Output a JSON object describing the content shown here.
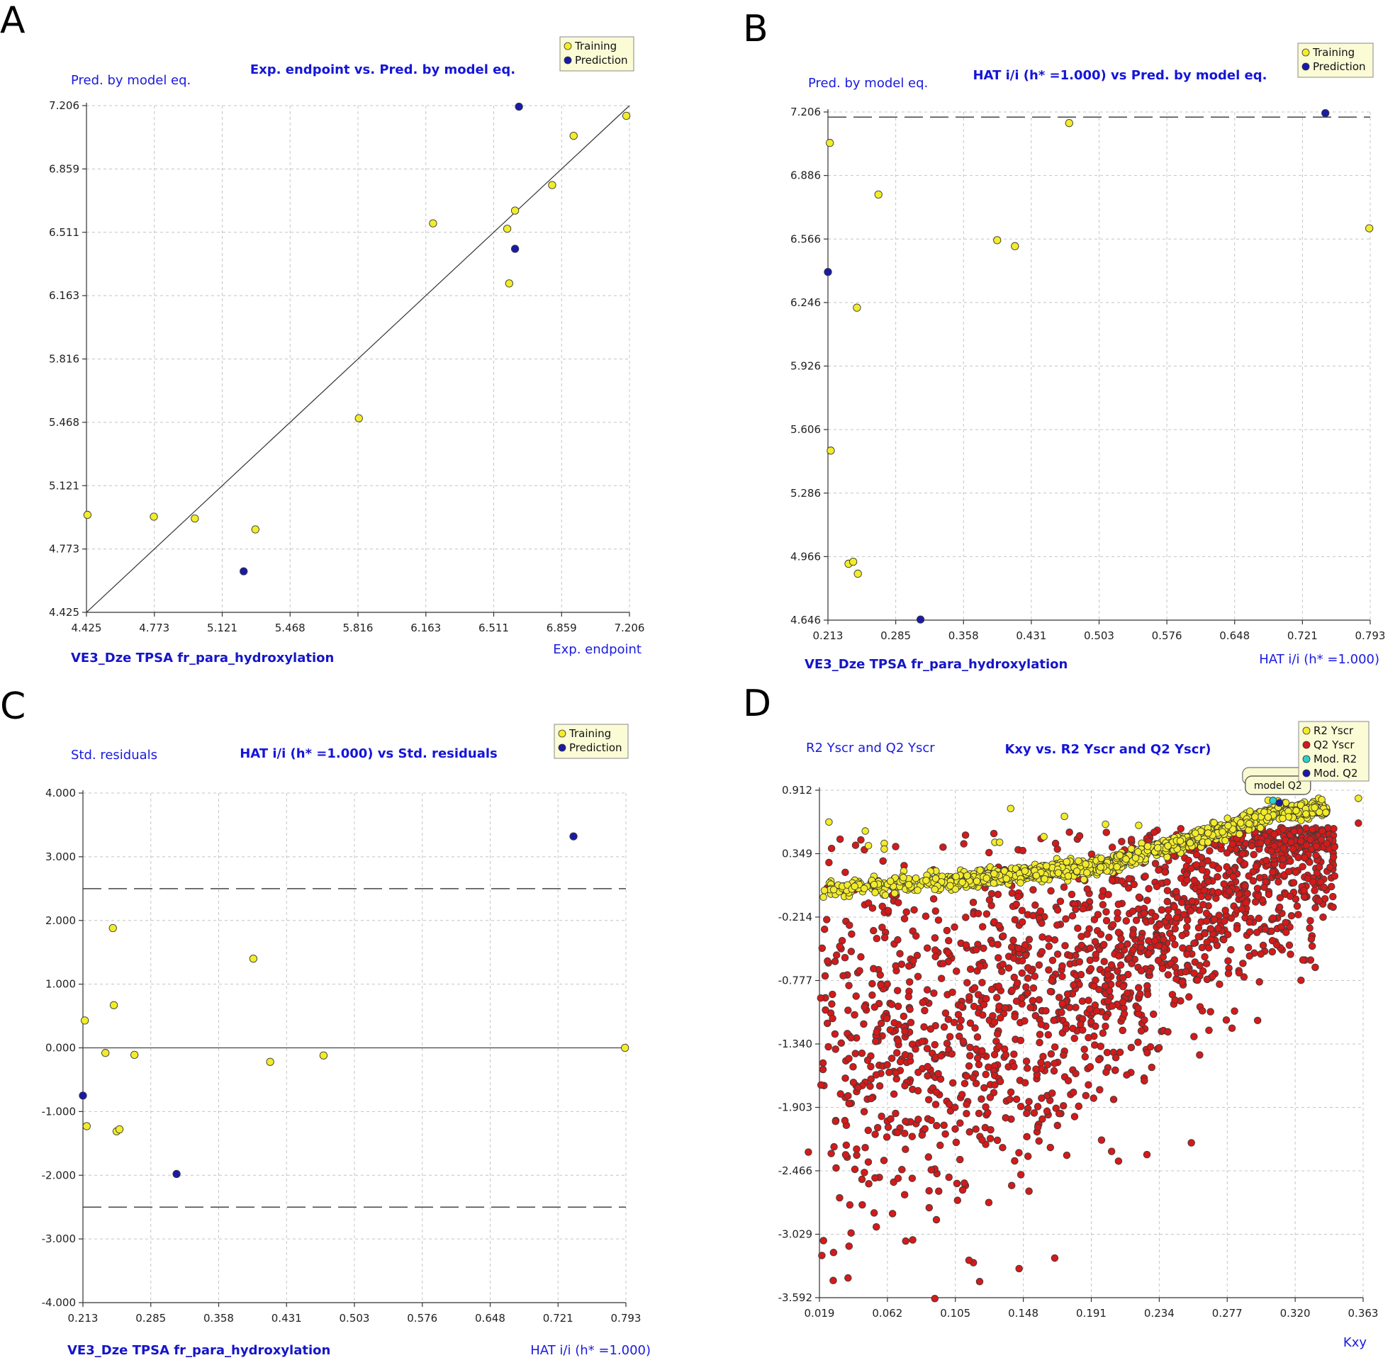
{
  "panels": [
    {
      "letter": "A",
      "footer": "VE3_Dze TPSA fr_para_hydroxylation"
    },
    {
      "letter": "B",
      "footer": "VE3_Dze TPSA fr_para_hydroxylation"
    },
    {
      "letter": "C",
      "footer": "VE3_Dze TPSA fr_para_hydroxylation"
    },
    {
      "letter": "D",
      "footer": ""
    }
  ],
  "chart_data": [
    {
      "type": "scatter",
      "title": "Exp. endpoint vs. Pred. by model eq.",
      "xlabel": "Exp. endpoint",
      "ylabel": "Pred. by model eq.",
      "xlim": [
        4.425,
        7.206
      ],
      "ylim": [
        4.425,
        7.206
      ],
      "xticks": [
        "4.425",
        "4.773",
        "5.121",
        "5.468",
        "5.816",
        "6.163",
        "6.511",
        "6.859",
        "7.206"
      ],
      "yticks": [
        "4.425",
        "4.773",
        "5.121",
        "5.468",
        "5.816",
        "6.163",
        "6.511",
        "6.859",
        "7.206"
      ],
      "grid": true,
      "legend_position": "top-right",
      "reference_line": "y = x",
      "series": [
        {
          "name": "Training",
          "color": "#f2ec2a",
          "points": [
            [
              4.43,
              4.96
            ],
            [
              4.77,
              4.95
            ],
            [
              4.98,
              4.94
            ],
            [
              5.29,
              4.88
            ],
            [
              5.82,
              5.49
            ],
            [
              6.2,
              6.56
            ],
            [
              6.58,
              6.53
            ],
            [
              6.59,
              6.23
            ],
            [
              6.62,
              6.63
            ],
            [
              6.81,
              6.77
            ],
            [
              6.92,
              7.04
            ],
            [
              7.19,
              7.15
            ]
          ]
        },
        {
          "name": "Prediction",
          "color": "#1a1aa8",
          "points": [
            [
              5.23,
              4.65
            ],
            [
              6.62,
              6.42
            ],
            [
              6.64,
              7.2
            ]
          ]
        }
      ]
    },
    {
      "type": "scatter",
      "title": "HAT i/i (h* =1.000) vs Pred. by model eq.",
      "xlabel": "HAT i/i (h* =1.000)",
      "ylabel": "Pred. by model eq.",
      "xlim": [
        0.213,
        0.793
      ],
      "ylim": [
        4.646,
        7.206
      ],
      "xticks": [
        "0.213",
        "0.285",
        "0.358",
        "0.431",
        "0.503",
        "0.576",
        "0.648",
        "0.721",
        "0.793"
      ],
      "yticks": [
        "4.646",
        "4.966",
        "5.286",
        "5.606",
        "5.926",
        "6.246",
        "6.566",
        "6.886",
        "7.206"
      ],
      "grid": true,
      "legend_position": "top-right",
      "threshold_line_y": 7.18,
      "series": [
        {
          "name": "Training",
          "color": "#f2ec2a",
          "points": [
            [
              0.215,
              7.05
            ],
            [
              0.216,
              5.5
            ],
            [
              0.235,
              4.93
            ],
            [
              0.24,
              4.94
            ],
            [
              0.245,
              4.88
            ],
            [
              0.244,
              6.22
            ],
            [
              0.267,
              6.79
            ],
            [
              0.394,
              6.56
            ],
            [
              0.413,
              6.53
            ],
            [
              0.471,
              7.15
            ],
            [
              0.792,
              6.62
            ]
          ]
        },
        {
          "name": "Prediction",
          "color": "#1a1aa8",
          "points": [
            [
              0.213,
              6.4
            ],
            [
              0.312,
              4.649
            ],
            [
              0.745,
              7.2
            ]
          ]
        }
      ]
    },
    {
      "type": "scatter",
      "title": "HAT i/i (h* =1.000) vs Std. residuals",
      "xlabel": "HAT i/i (h* =1.000)",
      "ylabel": "Std. residuals",
      "xlim": [
        0.213,
        0.793
      ],
      "ylim": [
        -4.0,
        4.0
      ],
      "xticks": [
        "0.213",
        "0.285",
        "0.358",
        "0.431",
        "0.503",
        "0.576",
        "0.648",
        "0.721",
        "0.793"
      ],
      "yticks": [
        "-4.000",
        "-3.000",
        "-2.000",
        "-1.000",
        "0.000",
        "1.000",
        "2.000",
        "3.000",
        "4.000"
      ],
      "grid": true,
      "legend_position": "top-right",
      "limit_lines_y": [
        2.5,
        -2.5
      ],
      "zero_line_y": 0,
      "series": [
        {
          "name": "Training",
          "color": "#f2ec2a",
          "points": [
            [
              0.215,
              0.43
            ],
            [
              0.217,
              -1.23
            ],
            [
              0.237,
              -0.08
            ],
            [
              0.245,
              1.88
            ],
            [
              0.246,
              0.67
            ],
            [
              0.249,
              -1.31
            ],
            [
              0.252,
              -1.28
            ],
            [
              0.268,
              -0.11
            ],
            [
              0.395,
              1.4
            ],
            [
              0.413,
              -0.22
            ],
            [
              0.47,
              -0.12
            ],
            [
              0.792,
              0.0
            ]
          ]
        },
        {
          "name": "Prediction",
          "color": "#1a1aa8",
          "points": [
            [
              0.213,
              -0.75
            ],
            [
              0.313,
              -1.98
            ],
            [
              0.737,
              3.32
            ]
          ]
        }
      ]
    },
    {
      "type": "scatter",
      "title": "Kxy vs. R2 Yscr and Q2 Yscr)",
      "xlabel": "Kxy",
      "ylabel": "R2 Yscr and Q2 Yscr",
      "xlim": [
        0.019,
        0.363
      ],
      "ylim": [
        -3.592,
        0.912
      ],
      "xticks": [
        "0.019",
        "0.062",
        "0.105",
        "0.148",
        "0.191",
        "0.234",
        "0.277",
        "0.320",
        "0.363"
      ],
      "yticks": [
        "-3.592",
        "-3.029",
        "-2.466",
        "-1.903",
        "-1.340",
        "-0.777",
        "-0.214",
        "0.349",
        "0.912"
      ],
      "grid": true,
      "legend_position": "top-right",
      "tooltip": "model Q2",
      "note": "Y-scrambling cloud of about 2000 points per series; drawn from the trends shown below.",
      "series": [
        {
          "name": "R2 Yscr",
          "color": "#f2ec2a",
          "trend": [
            [
              0.019,
              0.03
            ],
            [
              0.1,
              0.1
            ],
            [
              0.2,
              0.25
            ],
            [
              0.26,
              0.5
            ],
            [
              0.31,
              0.72
            ],
            [
              0.34,
              0.75
            ]
          ],
          "outliers": [
            [
              0.025,
              0.63
            ],
            [
              0.048,
              0.55
            ],
            [
              0.05,
              0.42
            ],
            [
              0.06,
              0.44
            ],
            [
              0.06,
              0.39
            ],
            [
              0.13,
              0.45
            ],
            [
              0.133,
              0.45
            ],
            [
              0.14,
              0.75
            ],
            [
              0.161,
              0.5
            ],
            [
              0.174,
              0.68
            ],
            [
              0.2,
              0.61
            ],
            [
              0.221,
              0.6
            ],
            [
              0.36,
              0.84
            ]
          ]
        },
        {
          "name": "Q2 Yscr",
          "color": "#d41a1a",
          "trend": [
            [
              0.02,
              -1.5
            ],
            [
              0.1,
              -1.35
            ],
            [
              0.17,
              -0.95
            ],
            [
              0.25,
              -0.2
            ],
            [
              0.32,
              0.35
            ]
          ],
          "outliers": [
            [
              0.025,
              0.27
            ],
            [
              0.092,
              -3.6
            ],
            [
              0.36,
              0.62
            ],
            [
              0.345,
              0.15
            ],
            [
              0.012,
              -2.3
            ]
          ]
        },
        {
          "name": "Mod. R2",
          "color": "#2ad0d0",
          "points": [
            [
              0.306,
              0.82
            ]
          ]
        },
        {
          "name": "Mod. Q2",
          "color": "#1a1aa8",
          "points": [
            [
              0.31,
              0.8
            ]
          ]
        }
      ]
    }
  ]
}
